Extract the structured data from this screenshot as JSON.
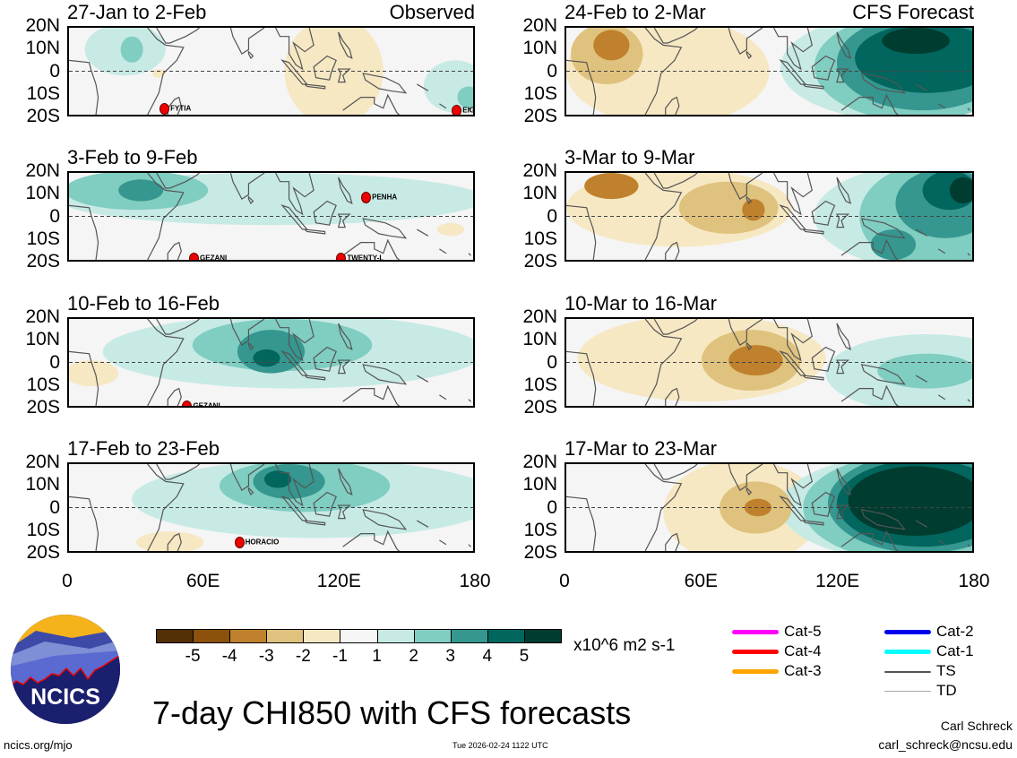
{
  "figure_title": "7-day CHI850 with CFS forecasts",
  "logo_text": "NCICS",
  "footer": {
    "url": "ncics.org/mjo",
    "timestamp": "Tue 2026-02-24 1122 UTC",
    "author": "Carl Schreck",
    "email": "carl_schreck@ncsu.edu"
  },
  "y_ticks": [
    "20N",
    "10N",
    "0",
    "10S",
    "20S"
  ],
  "x_ticks": [
    "0",
    "60E",
    "120E",
    "180"
  ],
  "colorbar": {
    "colors": [
      "#543005",
      "#8c510a",
      "#bf812d",
      "#dfc27d",
      "#f6e8c3",
      "#f5f5f5",
      "#c7eae5",
      "#80cdc1",
      "#35978f",
      "#01665e",
      "#003c30"
    ],
    "labels": [
      "-5",
      "-4",
      "-3",
      "-2",
      "-1",
      "1",
      "2",
      "3",
      "4",
      "5"
    ],
    "units": "x10^6 m2 s-1"
  },
  "track_legend": [
    {
      "label": "Cat-5",
      "color": "#ff00ff"
    },
    {
      "label": "Cat-4",
      "color": "#ff0000"
    },
    {
      "label": "Cat-3",
      "color": "#ffa500"
    },
    {
      "label": "Cat-2",
      "color": "#0000ee"
    },
    {
      "label": "Cat-1",
      "color": "#00ffff"
    },
    {
      "label": "TS",
      "color": "#555555"
    },
    {
      "label": "TD",
      "color": "#aaaaaa"
    }
  ],
  "chart_data": {
    "type": "heatmap",
    "variable": "7-day CHI850 anomaly",
    "lon_range": [
      0,
      180
    ],
    "lat_range": [
      -20,
      20
    ],
    "region_fields": [
      "lon_center",
      "lat_center",
      "lon_halfwidth",
      "lat_halfwidth",
      "level"
    ],
    "panels": [
      {
        "period": "27-Jan to 2-Feb",
        "label": "Observed",
        "col": 0,
        "row": 0,
        "regions": [
          [
            25,
            10,
            18,
            12,
            1
          ],
          [
            28,
            10,
            5,
            6,
            2
          ],
          [
            118,
            0,
            22,
            25,
            -1
          ],
          [
            40,
            -1,
            3,
            2,
            -1
          ],
          [
            172,
            -7,
            14,
            12,
            1
          ],
          [
            178,
            -12,
            5,
            5,
            2
          ]
        ],
        "storms": [
          {
            "name": "FYTIA",
            "lon": 42,
            "lat": -16
          },
          {
            "name": "EIGHTEEN",
            "lon": 171,
            "lat": -17
          }
        ]
      },
      {
        "period": "24-Feb to 2-Mar",
        "label": "CFS Forecast",
        "col": 1,
        "row": 0,
        "regions": [
          [
            45,
            0,
            45,
            25,
            -1
          ],
          [
            18,
            8,
            16,
            14,
            -2
          ],
          [
            20,
            12,
            8,
            7,
            -3
          ],
          [
            150,
            2,
            55,
            25,
            1
          ],
          [
            155,
            2,
            45,
            25,
            2
          ],
          [
            158,
            4,
            38,
            22,
            3
          ],
          [
            160,
            6,
            32,
            16,
            4
          ],
          [
            155,
            14,
            15,
            6,
            5
          ]
        ],
        "storms": []
      },
      {
        "period": "3-Feb to 9-Feb",
        "label": "",
        "col": 0,
        "row": 1,
        "regions": [
          [
            90,
            8,
            95,
            12,
            1
          ],
          [
            30,
            12,
            32,
            9,
            2
          ],
          [
            32,
            12,
            10,
            5,
            3
          ],
          [
            170,
            -6,
            6,
            3,
            -1
          ]
        ],
        "storms": [
          {
            "name": "PENHA",
            "lon": 131,
            "lat": 9
          },
          {
            "name": "GEZANI",
            "lon": 55,
            "lat": -18
          },
          {
            "name": "TWENTY-L",
            "lon": 120,
            "lat": -18
          }
        ]
      },
      {
        "period": "3-Mar to 9-Mar",
        "label": "",
        "col": 1,
        "row": 1,
        "regions": [
          [
            50,
            4,
            50,
            18,
            -1
          ],
          [
            72,
            4,
            22,
            12,
            -2
          ],
          [
            20,
            14,
            12,
            6,
            -3
          ],
          [
            83,
            3,
            5,
            5,
            -3
          ],
          [
            165,
            0,
            55,
            25,
            1
          ],
          [
            165,
            0,
            35,
            25,
            2
          ],
          [
            168,
            6,
            22,
            16,
            3
          ],
          [
            170,
            12,
            12,
            9,
            4
          ],
          [
            176,
            12,
            6,
            6,
            5
          ],
          [
            145,
            -13,
            10,
            7,
            3
          ]
        ],
        "storms": []
      },
      {
        "period": "10-Feb to 16-Feb",
        "label": "",
        "col": 0,
        "row": 2,
        "regions": [
          [
            100,
            5,
            85,
            17,
            1
          ],
          [
            95,
            8,
            40,
            12,
            2
          ],
          [
            90,
            5,
            15,
            10,
            3
          ],
          [
            88,
            2,
            6,
            4,
            4
          ],
          [
            10,
            -5,
            12,
            6,
            -1
          ]
        ],
        "storms": [
          {
            "name": "GEZANI",
            "lon": 52,
            "lat": -19
          }
        ]
      },
      {
        "period": "10-Mar to 16-Mar",
        "label": "",
        "col": 1,
        "row": 2,
        "regions": [
          [
            60,
            2,
            55,
            20,
            -1
          ],
          [
            82,
            1,
            22,
            14,
            -2
          ],
          [
            84,
            1,
            12,
            7,
            -3
          ],
          [
            160,
            -5,
            45,
            18,
            1
          ],
          [
            160,
            -4,
            22,
            8,
            2
          ]
        ],
        "storms": []
      },
      {
        "period": "17-Feb to 23-Feb",
        "label": "",
        "col": 0,
        "row": 3,
        "regions": [
          [
            110,
            4,
            82,
            18,
            1
          ],
          [
            105,
            10,
            38,
            12,
            2
          ],
          [
            98,
            12,
            16,
            8,
            3
          ],
          [
            93,
            13,
            6,
            4,
            4
          ],
          [
            45,
            -16,
            15,
            5,
            -1
          ]
        ],
        "storms": [
          {
            "name": "HORACIO",
            "lon": 75,
            "lat": -15
          }
        ]
      },
      {
        "period": "17-Mar to 23-Mar",
        "label": "",
        "col": 1,
        "row": 3,
        "regions": [
          [
            78,
            -2,
            35,
            24,
            -1
          ],
          [
            84,
            0,
            16,
            12,
            -2
          ],
          [
            85,
            0,
            6,
            4,
            -3
          ],
          [
            155,
            0,
            60,
            25,
            1
          ],
          [
            155,
            0,
            50,
            25,
            2
          ],
          [
            158,
            2,
            42,
            23,
            3
          ],
          [
            158,
            2,
            38,
            20,
            4
          ],
          [
            155,
            3,
            30,
            16,
            5
          ]
        ],
        "storms": []
      }
    ]
  }
}
